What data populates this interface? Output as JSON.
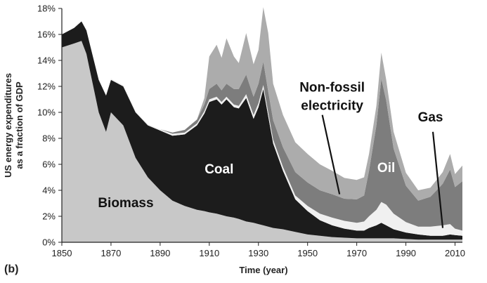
{
  "chart_data": {
    "type": "area",
    "stacked": true,
    "panel_label": "(b)",
    "xlabel": "Time (year)",
    "ylabel": "US energy expenditures as a fraction of GDP",
    "ylabel_lines": [
      "US energy expenditures",
      "as a fraction of GDP"
    ],
    "xlim": [
      1850,
      2013
    ],
    "ylim": [
      0,
      18
    ],
    "xticks": [
      1850,
      1870,
      1890,
      1910,
      1930,
      1950,
      1970,
      1990,
      2010
    ],
    "yticks": [
      0,
      2,
      4,
      6,
      8,
      10,
      12,
      14,
      16,
      18
    ],
    "ytick_labels": [
      "0%",
      "2%",
      "4%",
      "6%",
      "8%",
      "10%",
      "12%",
      "14%",
      "16%",
      "18%"
    ],
    "grid": false,
    "legend": "none",
    "annotations": [
      {
        "text": "Non-fossil",
        "series": "Non-fossil electricity"
      },
      {
        "text": "electricity",
        "series": "Non-fossil electricity"
      }
    ],
    "x": [
      1850,
      1855,
      1858,
      1860,
      1865,
      1868,
      1870,
      1875,
      1880,
      1885,
      1890,
      1895,
      1900,
      1905,
      1908,
      1910,
      1913,
      1915,
      1917,
      1920,
      1922,
      1925,
      1928,
      1930,
      1932,
      1934,
      1936,
      1940,
      1945,
      1950,
      1955,
      1960,
      1965,
      1970,
      1973,
      1975,
      1978,
      1980,
      1982,
      1985,
      1990,
      1995,
      2000,
      2005,
      2008,
      2010,
      2013
    ],
    "series": [
      {
        "name": "Biomass",
        "color": "#c8c8c8",
        "label_color": "#111111",
        "values": [
          15,
          15.3,
          15.5,
          14.5,
          10,
          8.5,
          10,
          9,
          6.5,
          5,
          4,
          3.2,
          2.8,
          2.5,
          2.4,
          2.3,
          2.2,
          2.1,
          2.0,
          1.9,
          1.8,
          1.6,
          1.5,
          1.4,
          1.3,
          1.2,
          1.1,
          1.0,
          0.8,
          0.6,
          0.5,
          0.4,
          0.35,
          0.3,
          0.3,
          0.3,
          0.3,
          0.3,
          0.3,
          0.3,
          0.25,
          0.2,
          0.2,
          0.2,
          0.2,
          0.2,
          0.2
        ]
      },
      {
        "name": "Coal",
        "color": "#1c1c1c",
        "label_color": "#ffffff",
        "values": [
          1,
          1.2,
          1.5,
          1.8,
          2.5,
          2.8,
          2.5,
          3,
          3.5,
          4,
          4.6,
          5,
          5.5,
          6.5,
          7.5,
          8.5,
          8.8,
          8.5,
          9,
          8.5,
          8.5,
          9.5,
          8.0,
          9.0,
          10.5,
          8.5,
          6.5,
          4.5,
          2.5,
          1.8,
          1.2,
          0.9,
          0.7,
          0.6,
          0.6,
          0.8,
          1.0,
          1.2,
          1.0,
          0.7,
          0.5,
          0.4,
          0.3,
          0.3,
          0.4,
          0.35,
          0.3
        ]
      },
      {
        "name": "Gas",
        "color": "#f0f0f0",
        "label_color": "#111111",
        "values": [
          0,
          0,
          0,
          0,
          0.05,
          0.05,
          0.1,
          0.1,
          0.1,
          0.1,
          0.1,
          0.15,
          0.15,
          0.15,
          0.2,
          0.2,
          0.2,
          0.2,
          0.2,
          0.2,
          0.2,
          0.3,
          0.3,
          0.3,
          0.3,
          0.3,
          0.3,
          0.3,
          0.3,
          0.4,
          0.5,
          0.6,
          0.6,
          0.6,
          0.7,
          0.9,
          1.2,
          1.6,
          1.6,
          1.2,
          0.8,
          0.6,
          0.7,
          0.8,
          0.8,
          0.5,
          0.4
        ]
      },
      {
        "name": "Oil",
        "color": "#7d7d7d",
        "label_color": "#ffffff",
        "values": [
          0,
          0,
          0,
          0,
          0,
          0,
          0,
          0,
          0,
          0,
          0,
          0.1,
          0.2,
          0.3,
          0.5,
          0.8,
          1.0,
          0.9,
          1.0,
          1.2,
          1.3,
          1.5,
          1.4,
          1.5,
          1.8,
          1.6,
          1.5,
          1.5,
          1.8,
          1.8,
          1.8,
          1.8,
          1.7,
          1.8,
          2.0,
          3.5,
          6.5,
          9.5,
          8.0,
          5.0,
          2.8,
          2.0,
          2.3,
          3.2,
          4.2,
          3.2,
          3.8
        ]
      },
      {
        "name": "Non-fossil electricity",
        "color": "#acacac",
        "label_color": "#111111",
        "values": [
          0,
          0,
          0,
          0,
          0,
          0,
          0,
          0,
          0,
          0,
          0,
          0,
          0,
          0,
          0.5,
          2.5,
          3.0,
          2.5,
          3.5,
          2.5,
          2.0,
          3.2,
          2.5,
          2.6,
          4.2,
          4.5,
          2.8,
          2.5,
          2.3,
          2.2,
          2.0,
          1.8,
          1.6,
          1.5,
          1.4,
          1.3,
          1.5,
          2.0,
          1.6,
          1.3,
          1.0,
          0.8,
          0.7,
          0.9,
          1.2,
          1.0,
          1.2
        ]
      }
    ]
  }
}
